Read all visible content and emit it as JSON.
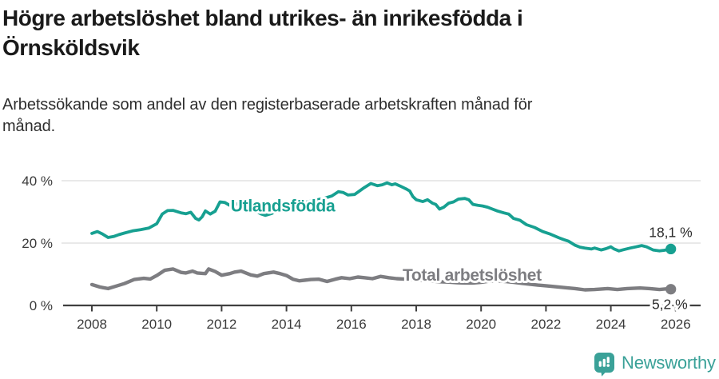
{
  "header": {
    "title_lines": [
      "Högre arbetslöshet bland utrikes- än inrikesfödda i",
      "Örnsköldsvik"
    ],
    "subtitle_lines": [
      "Arbetssökande som andel av den registerbaserade arbetskraften månad för",
      "månad."
    ]
  },
  "footer": {
    "brand": "Newsworthy",
    "brand_color": "#3aa198",
    "logo_icon": "bar-chart-speech-bubble-icon"
  },
  "chart_data": {
    "type": "line",
    "title": "Högre arbetslöshet bland utrikes- än inrikesfödda i Örnsköldsvik",
    "subtitle": "Arbetssökande som andel av den registerbaserade arbetskraften månad för månad.",
    "unit": "%",
    "grid": "horizontal",
    "legend_position": "inline-labels",
    "x_axis": {
      "range": [
        2008,
        2025.85
      ],
      "ticks": [
        2008,
        2010,
        2012,
        2014,
        2016,
        2018,
        2020,
        2022,
        2024,
        2026
      ]
    },
    "y_axis": {
      "range": [
        0,
        43
      ],
      "ticks": [
        {
          "value": 0,
          "label": "0 %"
        },
        {
          "value": 20,
          "label": "20 %"
        },
        {
          "value": 40,
          "label": "40 %"
        }
      ]
    },
    "style": {
      "grid_color": "#e2e2e2",
      "axis_color": "#3f3f3f",
      "tick_label_color": "#3a3a3a"
    },
    "series": [
      {
        "id": "utlandsfodda",
        "name": "Utlandsfödda",
        "color": "#17a091",
        "line_width": 3.8,
        "label_at": [
          2012.28,
          31.9
        ],
        "end_label": "18,1 %",
        "end_label_position": "above",
        "end_value": 18.1,
        "points": [
          [
            2008.0,
            23.1
          ],
          [
            2008.17,
            23.7
          ],
          [
            2008.33,
            22.9
          ],
          [
            2008.5,
            21.8
          ],
          [
            2008.67,
            22.1
          ],
          [
            2008.83,
            22.7
          ],
          [
            2009.0,
            23.2
          ],
          [
            2009.25,
            23.9
          ],
          [
            2009.5,
            24.3
          ],
          [
            2009.75,
            24.8
          ],
          [
            2010.0,
            26.2
          ],
          [
            2010.17,
            29.3
          ],
          [
            2010.33,
            30.4
          ],
          [
            2010.5,
            30.5
          ],
          [
            2010.75,
            29.7
          ],
          [
            2010.9,
            29.4
          ],
          [
            2011.05,
            29.9
          ],
          [
            2011.2,
            27.9
          ],
          [
            2011.3,
            27.4
          ],
          [
            2011.4,
            28.4
          ],
          [
            2011.5,
            30.3
          ],
          [
            2011.65,
            29.3
          ],
          [
            2011.8,
            30.2
          ],
          [
            2011.95,
            33.2
          ],
          [
            2012.1,
            33.0
          ],
          [
            2012.25,
            32.1
          ],
          [
            2012.45,
            32.6
          ],
          [
            2012.65,
            31.9
          ],
          [
            2012.85,
            31.3
          ],
          [
            2013.05,
            30.4
          ],
          [
            2013.2,
            29.4
          ],
          [
            2013.35,
            28.9
          ],
          [
            2013.55,
            29.5
          ],
          [
            2013.75,
            30.7
          ],
          [
            2014.0,
            31.6
          ],
          [
            2014.3,
            32.3
          ],
          [
            2014.6,
            33.1
          ],
          [
            2014.9,
            33.8
          ],
          [
            2015.15,
            34.3
          ],
          [
            2015.4,
            35.1
          ],
          [
            2015.6,
            36.5
          ],
          [
            2015.75,
            36.2
          ],
          [
            2015.9,
            35.4
          ],
          [
            2016.1,
            35.6
          ],
          [
            2016.25,
            36.7
          ],
          [
            2016.4,
            37.8
          ],
          [
            2016.6,
            39.1
          ],
          [
            2016.8,
            38.4
          ],
          [
            2016.95,
            38.7
          ],
          [
            2017.1,
            39.3
          ],
          [
            2017.25,
            38.7
          ],
          [
            2017.35,
            39.0
          ],
          [
            2017.5,
            38.3
          ],
          [
            2017.7,
            37.3
          ],
          [
            2017.8,
            36.7
          ],
          [
            2017.9,
            34.9
          ],
          [
            2018.0,
            33.9
          ],
          [
            2018.2,
            33.3
          ],
          [
            2018.35,
            33.9
          ],
          [
            2018.5,
            32.8
          ],
          [
            2018.6,
            32.4
          ],
          [
            2018.72,
            30.9
          ],
          [
            2018.85,
            31.5
          ],
          [
            2019.0,
            32.8
          ],
          [
            2019.15,
            33.2
          ],
          [
            2019.3,
            34.1
          ],
          [
            2019.5,
            34.3
          ],
          [
            2019.62,
            33.9
          ],
          [
            2019.75,
            32.4
          ],
          [
            2019.9,
            32.1
          ],
          [
            2020.05,
            31.9
          ],
          [
            2020.2,
            31.5
          ],
          [
            2020.35,
            30.9
          ],
          [
            2020.5,
            30.3
          ],
          [
            2020.7,
            29.7
          ],
          [
            2020.85,
            29.3
          ],
          [
            2021.0,
            27.9
          ],
          [
            2021.2,
            27.3
          ],
          [
            2021.4,
            25.9
          ],
          [
            2021.65,
            25.0
          ],
          [
            2021.9,
            23.7
          ],
          [
            2022.1,
            23.0
          ],
          [
            2022.4,
            21.7
          ],
          [
            2022.55,
            21.1
          ],
          [
            2022.7,
            20.6
          ],
          [
            2022.9,
            19.3
          ],
          [
            2023.05,
            18.7
          ],
          [
            2023.2,
            18.4
          ],
          [
            2023.4,
            18.1
          ],
          [
            2023.5,
            18.4
          ],
          [
            2023.7,
            17.8
          ],
          [
            2023.85,
            18.2
          ],
          [
            2024.0,
            18.8
          ],
          [
            2024.1,
            18.1
          ],
          [
            2024.25,
            17.5
          ],
          [
            2024.4,
            17.9
          ],
          [
            2024.6,
            18.4
          ],
          [
            2024.78,
            18.8
          ],
          [
            2024.95,
            19.2
          ],
          [
            2025.1,
            18.8
          ],
          [
            2025.3,
            17.8
          ],
          [
            2025.5,
            17.5
          ],
          [
            2025.65,
            17.7
          ],
          [
            2025.85,
            18.1
          ]
        ]
      },
      {
        "id": "total",
        "name": "Total arbetslöshet",
        "color": "#7d7d81",
        "line_width": 4.4,
        "label_at": [
          2017.58,
          9.7
        ],
        "end_label": "5,2 %",
        "end_label_position": "below",
        "end_value": 5.2,
        "points": [
          [
            2008.0,
            6.7
          ],
          [
            2008.25,
            5.9
          ],
          [
            2008.5,
            5.4
          ],
          [
            2008.75,
            6.2
          ],
          [
            2009.0,
            7.0
          ],
          [
            2009.3,
            8.3
          ],
          [
            2009.6,
            8.7
          ],
          [
            2009.8,
            8.5
          ],
          [
            2010.0,
            9.6
          ],
          [
            2010.25,
            11.3
          ],
          [
            2010.5,
            11.7
          ],
          [
            2010.75,
            10.6
          ],
          [
            2010.9,
            10.4
          ],
          [
            2011.1,
            11.0
          ],
          [
            2011.25,
            10.4
          ],
          [
            2011.5,
            10.2
          ],
          [
            2011.6,
            11.7
          ],
          [
            2011.8,
            10.9
          ],
          [
            2012.0,
            9.7
          ],
          [
            2012.25,
            10.2
          ],
          [
            2012.4,
            10.7
          ],
          [
            2012.6,
            11.0
          ],
          [
            2012.9,
            9.8
          ],
          [
            2013.1,
            9.4
          ],
          [
            2013.3,
            10.2
          ],
          [
            2013.6,
            10.7
          ],
          [
            2013.8,
            10.2
          ],
          [
            2014.0,
            9.6
          ],
          [
            2014.2,
            8.4
          ],
          [
            2014.4,
            7.9
          ],
          [
            2014.75,
            8.3
          ],
          [
            2015.0,
            8.4
          ],
          [
            2015.25,
            7.7
          ],
          [
            2015.5,
            8.4
          ],
          [
            2015.7,
            8.9
          ],
          [
            2015.95,
            8.6
          ],
          [
            2016.2,
            9.1
          ],
          [
            2016.4,
            8.9
          ],
          [
            2016.65,
            8.6
          ],
          [
            2016.9,
            9.3
          ],
          [
            2017.15,
            8.9
          ],
          [
            2017.4,
            8.6
          ],
          [
            2017.6,
            8.5
          ],
          [
            2017.8,
            8.3
          ],
          [
            2018.0,
            8.2
          ],
          [
            2018.25,
            8.0
          ],
          [
            2018.5,
            7.8
          ],
          [
            2018.75,
            7.6
          ],
          [
            2019.0,
            7.5
          ],
          [
            2019.25,
            7.3
          ],
          [
            2019.5,
            7.2
          ],
          [
            2019.75,
            7.2
          ],
          [
            2020.0,
            7.4
          ],
          [
            2020.25,
            7.8
          ],
          [
            2020.5,
            7.9
          ],
          [
            2020.75,
            7.7
          ],
          [
            2021.0,
            7.4
          ],
          [
            2021.25,
            7.1
          ],
          [
            2021.5,
            6.8
          ],
          [
            2021.75,
            6.5
          ],
          [
            2022.0,
            6.3
          ],
          [
            2022.2,
            6.1
          ],
          [
            2022.6,
            5.7
          ],
          [
            2022.9,
            5.4
          ],
          [
            2023.2,
            5.0
          ],
          [
            2023.5,
            5.1
          ],
          [
            2023.9,
            5.4
          ],
          [
            2024.2,
            5.1
          ],
          [
            2024.5,
            5.4
          ],
          [
            2024.9,
            5.6
          ],
          [
            2025.2,
            5.4
          ],
          [
            2025.5,
            5.1
          ],
          [
            2025.7,
            5.3
          ],
          [
            2025.85,
            5.2
          ]
        ]
      }
    ]
  }
}
